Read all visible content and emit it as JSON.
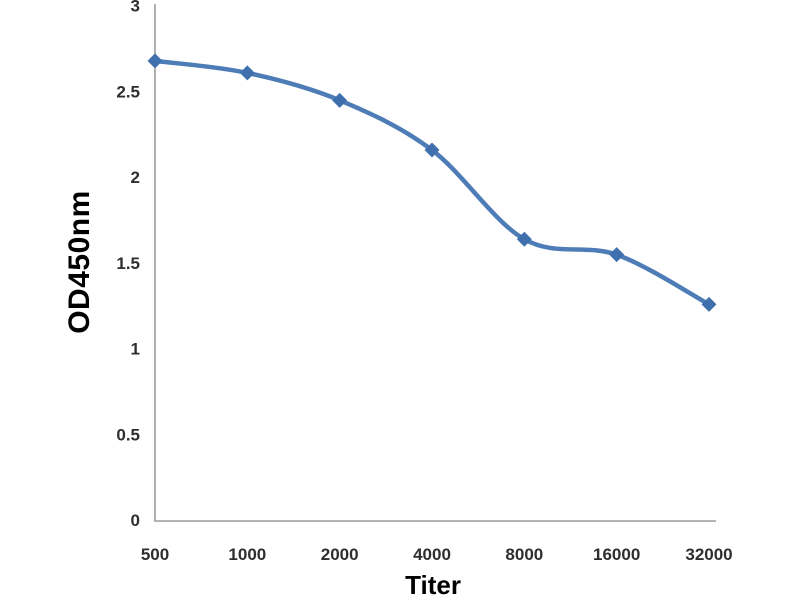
{
  "figure": {
    "background": "#ffffff"
  },
  "chart_data": {
    "type": "line",
    "title": "",
    "categories": [
      "500",
      "1000",
      "2000",
      "4000",
      "8000",
      "16000",
      "32000"
    ],
    "series": [
      {
        "name": "OD450nm",
        "values": [
          2.68,
          2.61,
          2.45,
          2.16,
          1.64,
          1.55,
          1.26
        ]
      }
    ],
    "xlabel": "Titer",
    "ylabel": "OD450nm",
    "ylim": [
      0,
      3
    ],
    "ytick_labels": [
      "0",
      "0.5",
      "1",
      "1.5",
      "2",
      "2.5",
      "3"
    ],
    "grid": false,
    "legend": "none",
    "smooth_line": true,
    "marker_shape": "diamond",
    "colors": {
      "line": "#4d7cb6",
      "marker": "#3f6fad",
      "axis": "#9b9b9b",
      "tick_text": "#2e2e2e",
      "title_text": "#0d0d0d"
    }
  }
}
